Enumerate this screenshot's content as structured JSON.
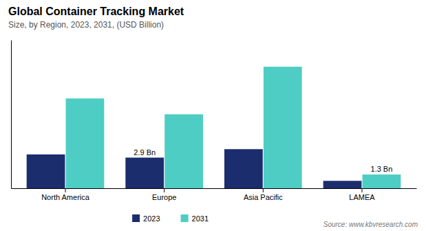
{
  "chart_data": {
    "type": "bar",
    "title": "Global Container Tracking Market",
    "subtitle": "Size, by Region, 2023, 2031, (USD Billion)",
    "source": "Source: www.kbvresearch.com",
    "categories": [
      "North America",
      "Europe",
      "Asia Pacific",
      "LAMEA"
    ],
    "series": [
      {
        "name": "2023",
        "color": "#1c2d6e",
        "values": [
          3.2,
          2.9,
          3.7,
          0.7
        ]
      },
      {
        "name": "2031",
        "color": "#4ecdc4",
        "values": [
          8.5,
          7.0,
          11.5,
          1.3
        ]
      }
    ],
    "annotations": [
      {
        "text": "2.9 Bn",
        "category": "Europe",
        "series": "2023"
      },
      {
        "text": "1.3 Bn",
        "category": "LAMEA",
        "series": "2031"
      }
    ],
    "ylim": [
      0,
      14.03
    ],
    "yticks": [],
    "tick_labels": "x",
    "grid": false,
    "legend": "bottom"
  }
}
